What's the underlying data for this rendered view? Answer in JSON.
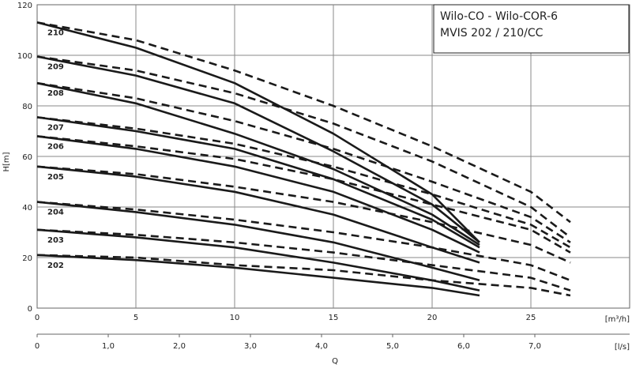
{
  "chart_data": {
    "type": "line",
    "title_lines": [
      "Wilo-CO - Wilo-COR-6",
      "MVIS 202 / 210/CC"
    ],
    "ylabel": "H[m]",
    "xlabel": "Q",
    "x_unit_top": "[m³/h]",
    "x_unit_bottom": "[l/s]",
    "xlim_m3h": [
      0,
      30
    ],
    "ylim": [
      0,
      120
    ],
    "x_ticks_m3h": [
      "0",
      "5",
      "10",
      "15",
      "20",
      "25"
    ],
    "x_ticks_ls": [
      "0",
      "1,0",
      "2,0",
      "3,0",
      "4,0",
      "5,0",
      "6,0",
      "7,0"
    ],
    "y_ticks": [
      "0",
      "20",
      "40",
      "60",
      "80",
      "100",
      "120"
    ],
    "grid": true,
    "series": [
      {
        "name": "210",
        "solid": [
          [
            0,
            113
          ],
          [
            5,
            103
          ],
          [
            10,
            89
          ],
          [
            15,
            69
          ],
          [
            20,
            45
          ],
          [
            22.4,
            26
          ]
        ],
        "dashed": [
          [
            0,
            113
          ],
          [
            5,
            106
          ],
          [
            10,
            94
          ],
          [
            15,
            80
          ],
          [
            20,
            64
          ],
          [
            25,
            46
          ],
          [
            27,
            34
          ]
        ]
      },
      {
        "name": "209",
        "solid": [
          [
            0,
            99.5
          ],
          [
            5,
            92
          ],
          [
            10,
            81
          ],
          [
            15,
            62
          ],
          [
            20,
            41
          ],
          [
            22.4,
            26
          ]
        ],
        "dashed": [
          [
            0,
            99.5
          ],
          [
            5,
            94
          ],
          [
            10,
            85
          ],
          [
            15,
            73
          ],
          [
            20,
            58
          ],
          [
            25,
            40
          ],
          [
            27,
            28
          ]
        ]
      },
      {
        "name": "208",
        "solid": [
          [
            0,
            89
          ],
          [
            5,
            81
          ],
          [
            10,
            69
          ],
          [
            15,
            55
          ],
          [
            20,
            37
          ],
          [
            22.4,
            25
          ]
        ],
        "dashed": [
          [
            0,
            89
          ],
          [
            5,
            83
          ],
          [
            10,
            74
          ],
          [
            15,
            63
          ],
          [
            20,
            50
          ],
          [
            25,
            36
          ],
          [
            27,
            26
          ]
        ]
      },
      {
        "name": "207",
        "solid": [
          [
            0,
            75.5
          ],
          [
            5,
            70
          ],
          [
            10,
            63
          ],
          [
            15,
            51
          ],
          [
            20,
            35
          ],
          [
            22.4,
            24
          ]
        ],
        "dashed": [
          [
            0,
            75.5
          ],
          [
            5,
            71
          ],
          [
            10,
            65
          ],
          [
            15,
            56
          ],
          [
            20,
            45
          ],
          [
            25,
            33
          ],
          [
            27,
            24
          ]
        ]
      },
      {
        "name": "206",
        "solid": [
          [
            0,
            68
          ],
          [
            5,
            63
          ],
          [
            10,
            56
          ],
          [
            15,
            46
          ],
          [
            20,
            31
          ],
          [
            22.4,
            22
          ]
        ],
        "dashed": [
          [
            0,
            68
          ],
          [
            5,
            64
          ],
          [
            10,
            59
          ],
          [
            15,
            51
          ],
          [
            20,
            41
          ],
          [
            25,
            31
          ],
          [
            27,
            22
          ]
        ]
      },
      {
        "name": "205",
        "solid": [
          [
            0,
            56
          ],
          [
            5,
            52
          ],
          [
            10,
            46
          ],
          [
            15,
            37
          ],
          [
            20,
            24
          ],
          [
            22.4,
            18
          ]
        ],
        "dashed": [
          [
            0,
            56
          ],
          [
            5,
            53
          ],
          [
            10,
            48
          ],
          [
            15,
            42
          ],
          [
            20,
            34
          ],
          [
            25,
            25
          ],
          [
            27,
            18
          ]
        ]
      },
      {
        "name": "204",
        "solid": [
          [
            0,
            42
          ],
          [
            5,
            38
          ],
          [
            10,
            33
          ],
          [
            15,
            26
          ],
          [
            20,
            16
          ],
          [
            22.4,
            11
          ]
        ],
        "dashed": [
          [
            0,
            42
          ],
          [
            5,
            39
          ],
          [
            10,
            35
          ],
          [
            15,
            30
          ],
          [
            20,
            24
          ],
          [
            25,
            17
          ],
          [
            27,
            11
          ]
        ]
      },
      {
        "name": "203",
        "solid": [
          [
            0,
            31
          ],
          [
            5,
            28
          ],
          [
            10,
            24
          ],
          [
            15,
            18
          ],
          [
            20,
            11
          ],
          [
            22.4,
            7
          ]
        ],
        "dashed": [
          [
            0,
            31
          ],
          [
            5,
            29
          ],
          [
            10,
            26
          ],
          [
            15,
            22
          ],
          [
            20,
            17
          ],
          [
            25,
            12
          ],
          [
            27,
            7
          ]
        ]
      },
      {
        "name": "202",
        "solid": [
          [
            0,
            21
          ],
          [
            5,
            19
          ],
          [
            10,
            16
          ],
          [
            15,
            12
          ],
          [
            20,
            8
          ],
          [
            22.4,
            5
          ]
        ],
        "dashed": [
          [
            0,
            21
          ],
          [
            5,
            20
          ],
          [
            10,
            17
          ],
          [
            15,
            15
          ],
          [
            20,
            11
          ],
          [
            25,
            8
          ],
          [
            27,
            5
          ]
        ]
      }
    ]
  }
}
